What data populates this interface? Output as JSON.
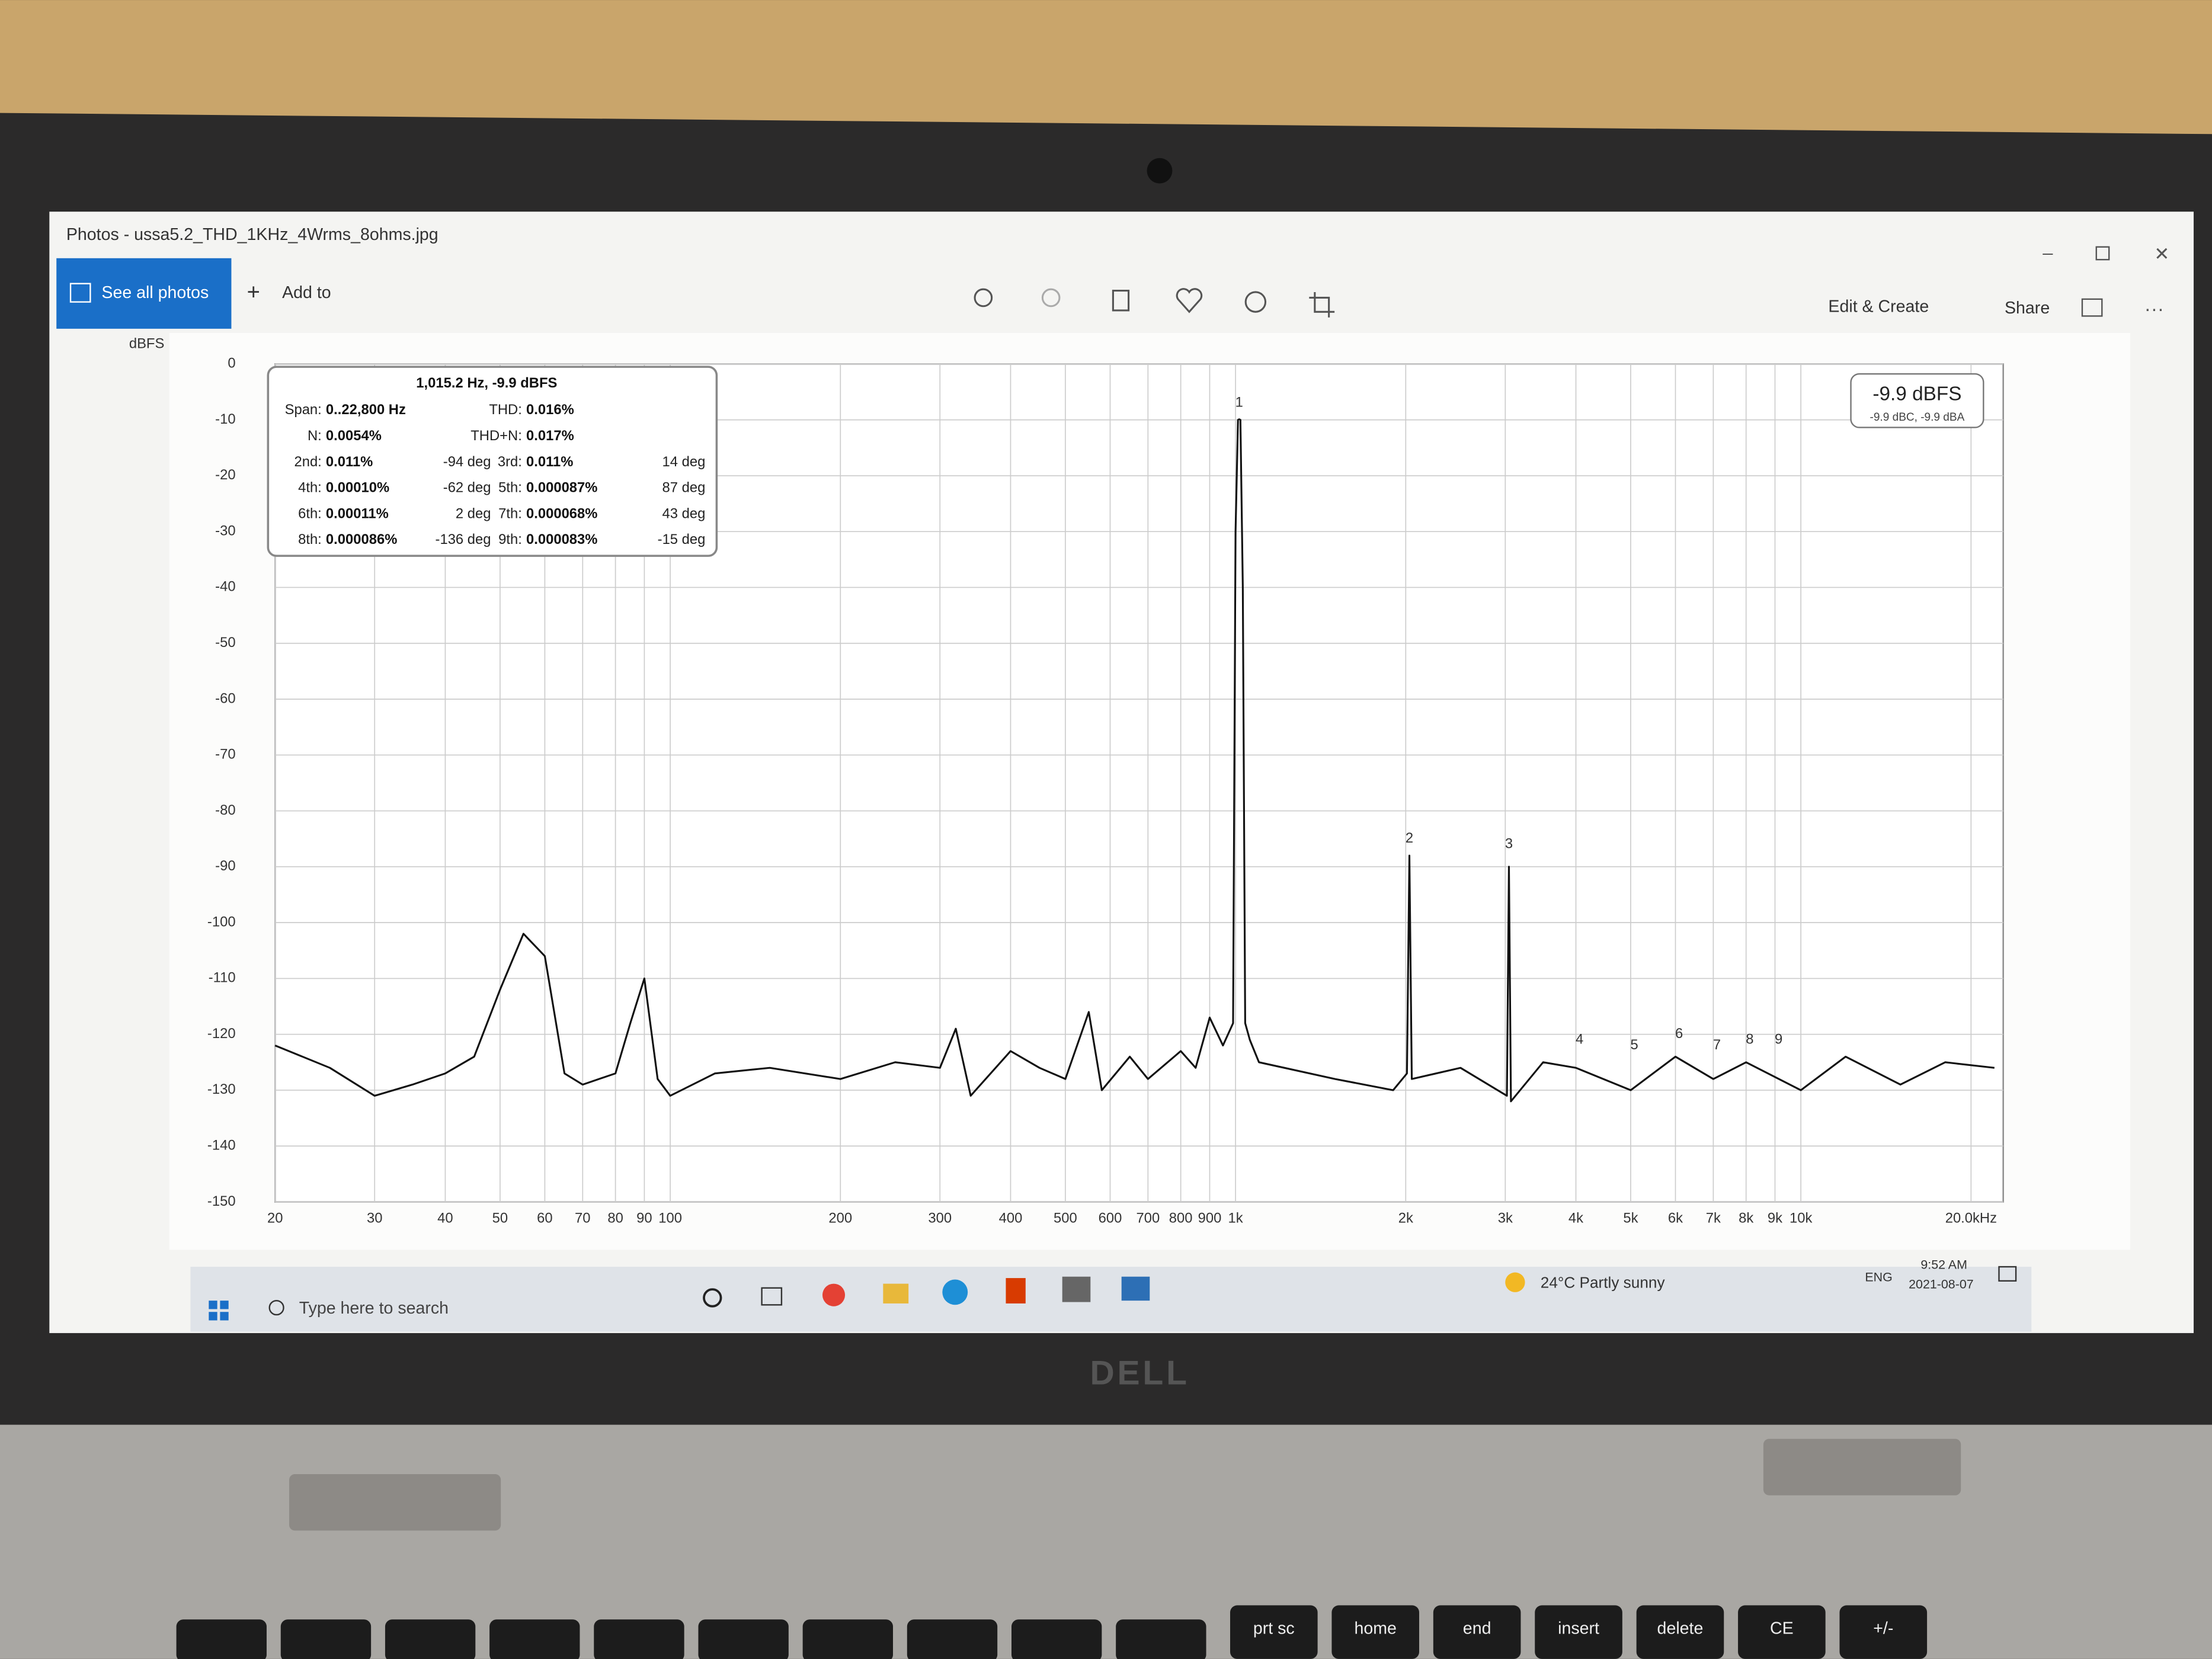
{
  "window": {
    "title": "Photos - ussa5.2_THD_1KHz_4Wrms_8ohms.jpg"
  },
  "toolbar": {
    "see_all": "See all photos",
    "add_to": "Add to",
    "edit_create": "Edit & Create",
    "share": "Share"
  },
  "chart_data": {
    "type": "line",
    "ylabel": "dBFS",
    "xscale": "log",
    "grid": true,
    "color": "#111111",
    "xlim": [
      20,
      22800
    ],
    "ylim": [
      -150,
      0
    ],
    "yticks": [
      0,
      -10,
      -20,
      -30,
      -40,
      -50,
      -60,
      -70,
      -80,
      -90,
      -100,
      -110,
      -120,
      -130,
      -140,
      -150
    ],
    "xticks": [
      20,
      30,
      40,
      50,
      60,
      70,
      80,
      90,
      100,
      200,
      300,
      400,
      500,
      600,
      700,
      800,
      900,
      {
        "value": 1000,
        "label": "1k"
      },
      {
        "value": 2000,
        "label": "2k"
      },
      {
        "value": 3000,
        "label": "3k"
      },
      {
        "value": 4000,
        "label": "4k"
      },
      {
        "value": 5000,
        "label": "5k"
      },
      {
        "value": 6000,
        "label": "6k"
      },
      {
        "value": 7000,
        "label": "7k"
      },
      {
        "value": 8000,
        "label": "8k"
      },
      {
        "value": 9000,
        "label": "9k"
      },
      {
        "value": 10000,
        "label": "10k"
      },
      {
        "value": 20000,
        "label": "20.0kHz"
      }
    ],
    "x": [
      20,
      25,
      30,
      35,
      40,
      45,
      50,
      55,
      60,
      65,
      70,
      80,
      85,
      90,
      95,
      100,
      120,
      150,
      200,
      250,
      300,
      320,
      340,
      400,
      450,
      500,
      550,
      580,
      650,
      700,
      800,
      850,
      900,
      950,
      990,
      1000,
      1010,
      1015,
      1020,
      1030,
      1040,
      1060,
      1100,
      1500,
      1900,
      2010,
      2030,
      2050,
      2500,
      3020,
      3045,
      3070,
      3500,
      4000,
      5000,
      6000,
      7000,
      8000,
      10000,
      12000,
      15000,
      18000,
      22000
    ],
    "values": [
      -122,
      -126,
      -131,
      -129,
      -127,
      -124,
      -112,
      -102,
      -106,
      -127,
      -129,
      -127,
      -118,
      -110,
      -128,
      -131,
      -127,
      -126,
      -128,
      -125,
      -126,
      -119,
      -131,
      -123,
      -126,
      -128,
      -116,
      -130,
      -124,
      -128,
      -123,
      -126,
      -117,
      -122,
      -118,
      -30,
      -10,
      -9.9,
      -10,
      -40,
      -118,
      -121,
      -125,
      -128,
      -130,
      -127,
      -88,
      -128,
      -126,
      -131,
      -90,
      -132,
      -125,
      -126,
      -130,
      -124,
      -128,
      -125,
      -130,
      -124,
      -129,
      -125,
      -126
    ],
    "harmonic_markers": [
      {
        "label": "1",
        "x": 1015,
        "y": -7
      },
      {
        "label": "2",
        "x": 2030,
        "y": -85
      },
      {
        "label": "3",
        "x": 3045,
        "y": -86
      },
      {
        "label": "4",
        "x": 4060,
        "y": -121
      },
      {
        "label": "5",
        "x": 5075,
        "y": -122
      },
      {
        "label": "6",
        "x": 6090,
        "y": -120
      },
      {
        "label": "7",
        "x": 7105,
        "y": -122
      },
      {
        "label": "8",
        "x": 8120,
        "y": -121
      },
      {
        "label": "9",
        "x": 9135,
        "y": -121
      }
    ],
    "readout": {
      "main": "-9.9 dBFS",
      "sub": "-9.9 dBC, -9.9 dBA"
    },
    "info_box": {
      "header": "1,015.2 Hz, -9.9 dBFS",
      "rows": [
        {
          "left": {
            "label": "Span:",
            "value": "0..22,800 Hz"
          },
          "right": {
            "label": "THD:",
            "value": "0.016%"
          }
        },
        {
          "left": {
            "label": "N:",
            "value": "0.0054%"
          },
          "right": {
            "label": "THD+N:",
            "value": "0.017%"
          }
        },
        {
          "left": {
            "label": "2nd:",
            "value": "0.011%",
            "phase": "-94 deg"
          },
          "right": {
            "label": "3rd:",
            "value": "0.011%",
            "phase": "14 deg"
          }
        },
        {
          "left": {
            "label": "4th:",
            "value": "0.00010%",
            "phase": "-62 deg"
          },
          "right": {
            "label": "5th:",
            "value": "0.000087%",
            "phase": "87 deg"
          }
        },
        {
          "left": {
            "label": "6th:",
            "value": "0.00011%",
            "phase": "2 deg"
          },
          "right": {
            "label": "7th:",
            "value": "0.000068%",
            "phase": "43 deg"
          }
        },
        {
          "left": {
            "label": "8th:",
            "value": "0.000086%",
            "phase": "-136 deg"
          },
          "right": {
            "label": "9th:",
            "value": "0.000083%",
            "phase": "-15 deg"
          }
        }
      ]
    }
  },
  "taskbar": {
    "search": "Type here to search",
    "weather": "24°C  Partly sunny",
    "language": "ENG",
    "time": "9:52 AM",
    "date": "2021-08-07"
  },
  "laptop": {
    "brand": "DELL",
    "keys": [
      "prt sc",
      "home",
      "end",
      "insert",
      "delete",
      "CE",
      "+/-"
    ]
  }
}
